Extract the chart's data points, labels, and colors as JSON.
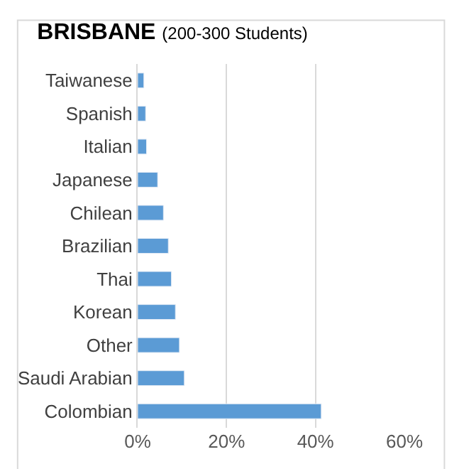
{
  "chart_data": {
    "type": "bar",
    "orientation": "horizontal",
    "title": "BRISBANE (200-300 Students)",
    "categories": [
      "Taiwanese",
      "Spanish",
      "Italian",
      "Japanese",
      "Chilean",
      "Brazilian",
      "Thai",
      "Korean",
      "Other",
      "Saudi Arabian",
      "Colombian"
    ],
    "values": [
      1.4,
      1.8,
      2.0,
      4.5,
      5.8,
      6.9,
      7.6,
      8.5,
      9.4,
      10.5,
      41.3
    ],
    "color": "#5b9bd5",
    "xlim": [
      0,
      60
    ],
    "xticks": [
      {
        "value": 0,
        "label": "0%"
      },
      {
        "value": 20,
        "label": "20%"
      },
      {
        "value": 40,
        "label": "40%"
      },
      {
        "value": 60,
        "label": "60%"
      }
    ],
    "grid": "x"
  }
}
